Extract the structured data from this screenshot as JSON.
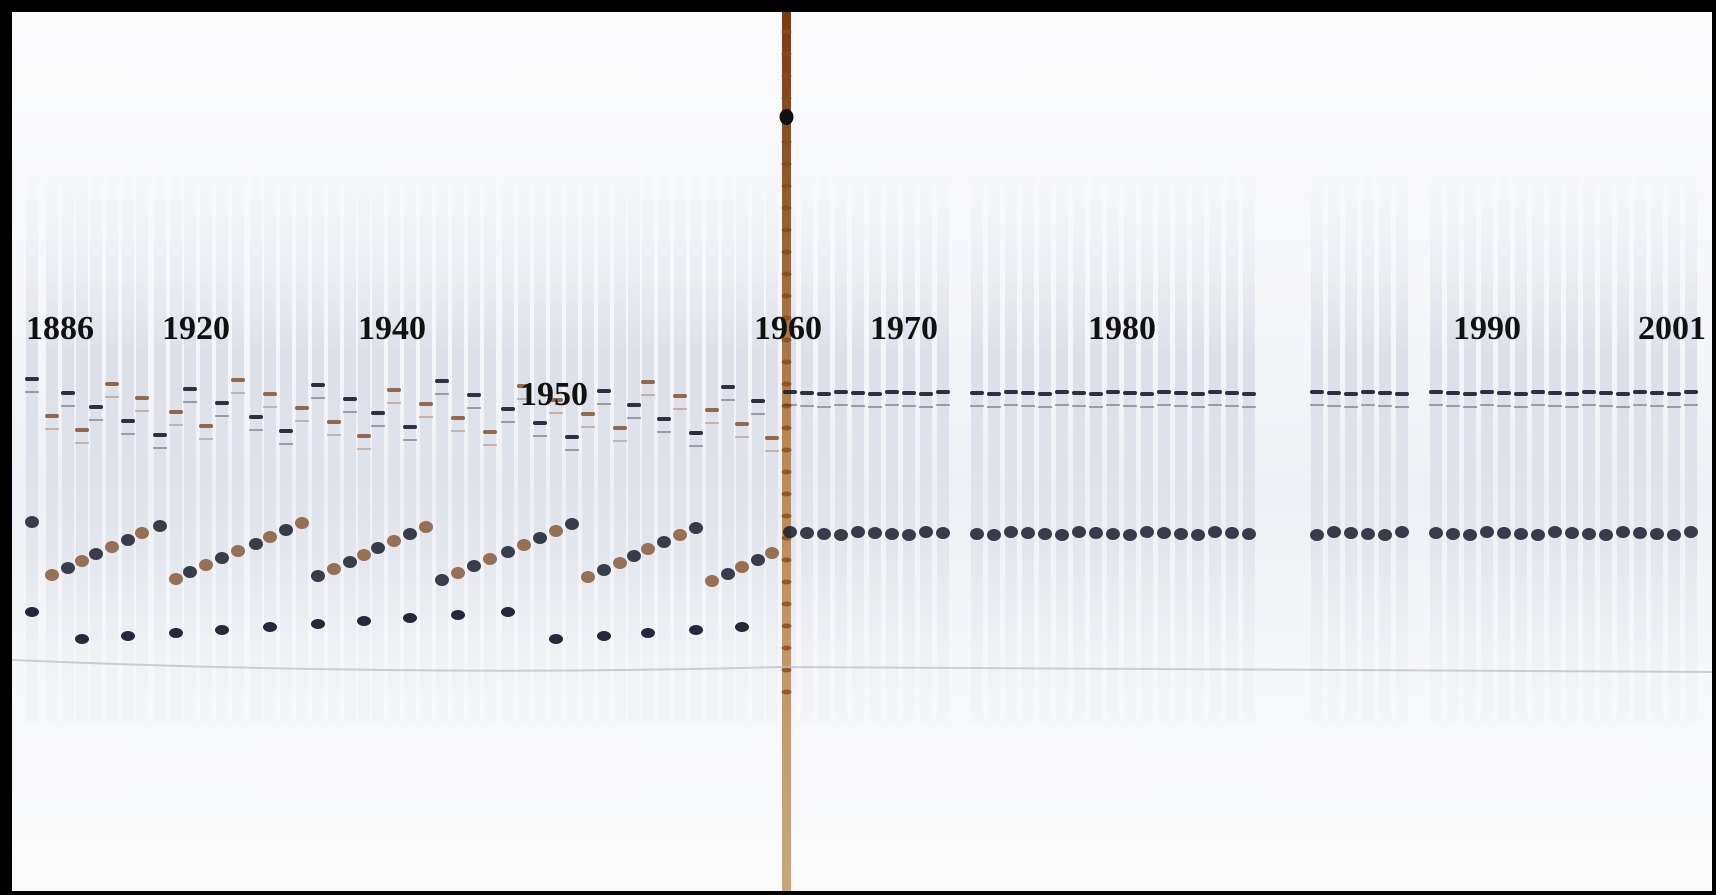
{
  "image": {
    "subject": "electrophoresis-gel",
    "colors": {
      "background": "#f3f4f7",
      "band_dark": "#1a1d2e",
      "band_brown": "#8a5a3a",
      "ladder": "#b07030",
      "border": "#000000"
    }
  },
  "year_labels": {
    "y1886": "1886",
    "y1920": "1920",
    "y1940": "1940",
    "y1950": "1950",
    "y1960": "1960",
    "y1970": "1970",
    "y1980": "1980",
    "y1990": "1990",
    "y2001": "2001"
  }
}
